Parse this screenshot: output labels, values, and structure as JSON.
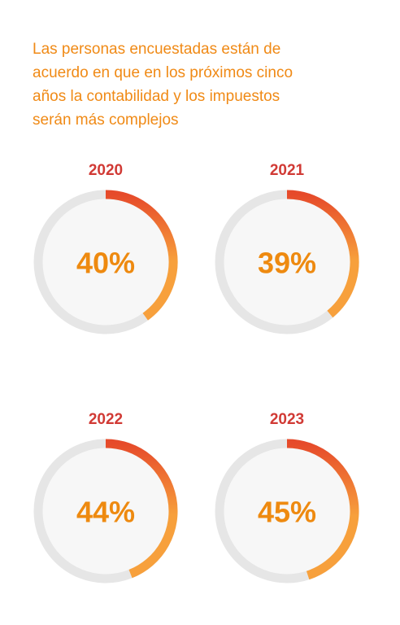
{
  "headline": {
    "lines": [
      "Las personas encuestadas están de",
      "acuerdo en que en los próximos cinco",
      "años la contabilidad y los impuestos",
      "serán más complejos"
    ]
  },
  "colors": {
    "headline": "#f08a16",
    "year": "#d13a35",
    "track": "#e6e6e6",
    "center_fill": "#f7f7f7",
    "arc_start": "#e64a2a",
    "arc_end": "#f7a03c",
    "percent_text": "#ee8a10"
  },
  "chart_data": [
    {
      "type": "pie",
      "title": "2020",
      "values": [
        40,
        60
      ],
      "label": "40%"
    },
    {
      "type": "pie",
      "title": "2021",
      "values": [
        39,
        61
      ],
      "label": "39%"
    },
    {
      "type": "pie",
      "title": "2022",
      "values": [
        44,
        56
      ],
      "label": "44%"
    },
    {
      "type": "pie",
      "title": "2023",
      "values": [
        45,
        55
      ],
      "label": "45%"
    }
  ]
}
